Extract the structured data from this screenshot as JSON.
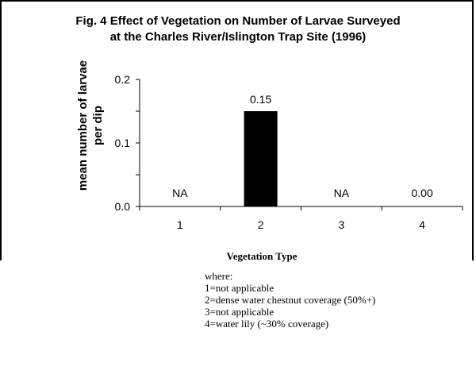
{
  "chart_data": {
    "type": "bar",
    "title_line1": "Fig. 4  Effect of Vegetation on Number of Larvae Surveyed",
    "title_line2": "at the Charles River/Islington Trap Site (1996)",
    "ylabel_line1": "mean number of larvae",
    "ylabel_line2": "per dip",
    "xlabel": "Vegetation Type",
    "categories": [
      "1",
      "2",
      "3",
      "4"
    ],
    "values": [
      null,
      0.15,
      null,
      0.0
    ],
    "data_labels": [
      "NA",
      "0.15",
      "NA",
      "0.00"
    ],
    "ylim": [
      0,
      0.2
    ],
    "yticks": [
      "0.0",
      "0.1",
      "0.2"
    ],
    "ytick_values": [
      0,
      0.1,
      0.2
    ],
    "bar_color": "#000000",
    "grid": false
  },
  "legend": {
    "heading": "where:",
    "items": [
      "1=not applicable",
      "2=dense water chestnut coverage (50%+)",
      "3=not applicable",
      "4=water lily (~30% coverage)"
    ]
  }
}
